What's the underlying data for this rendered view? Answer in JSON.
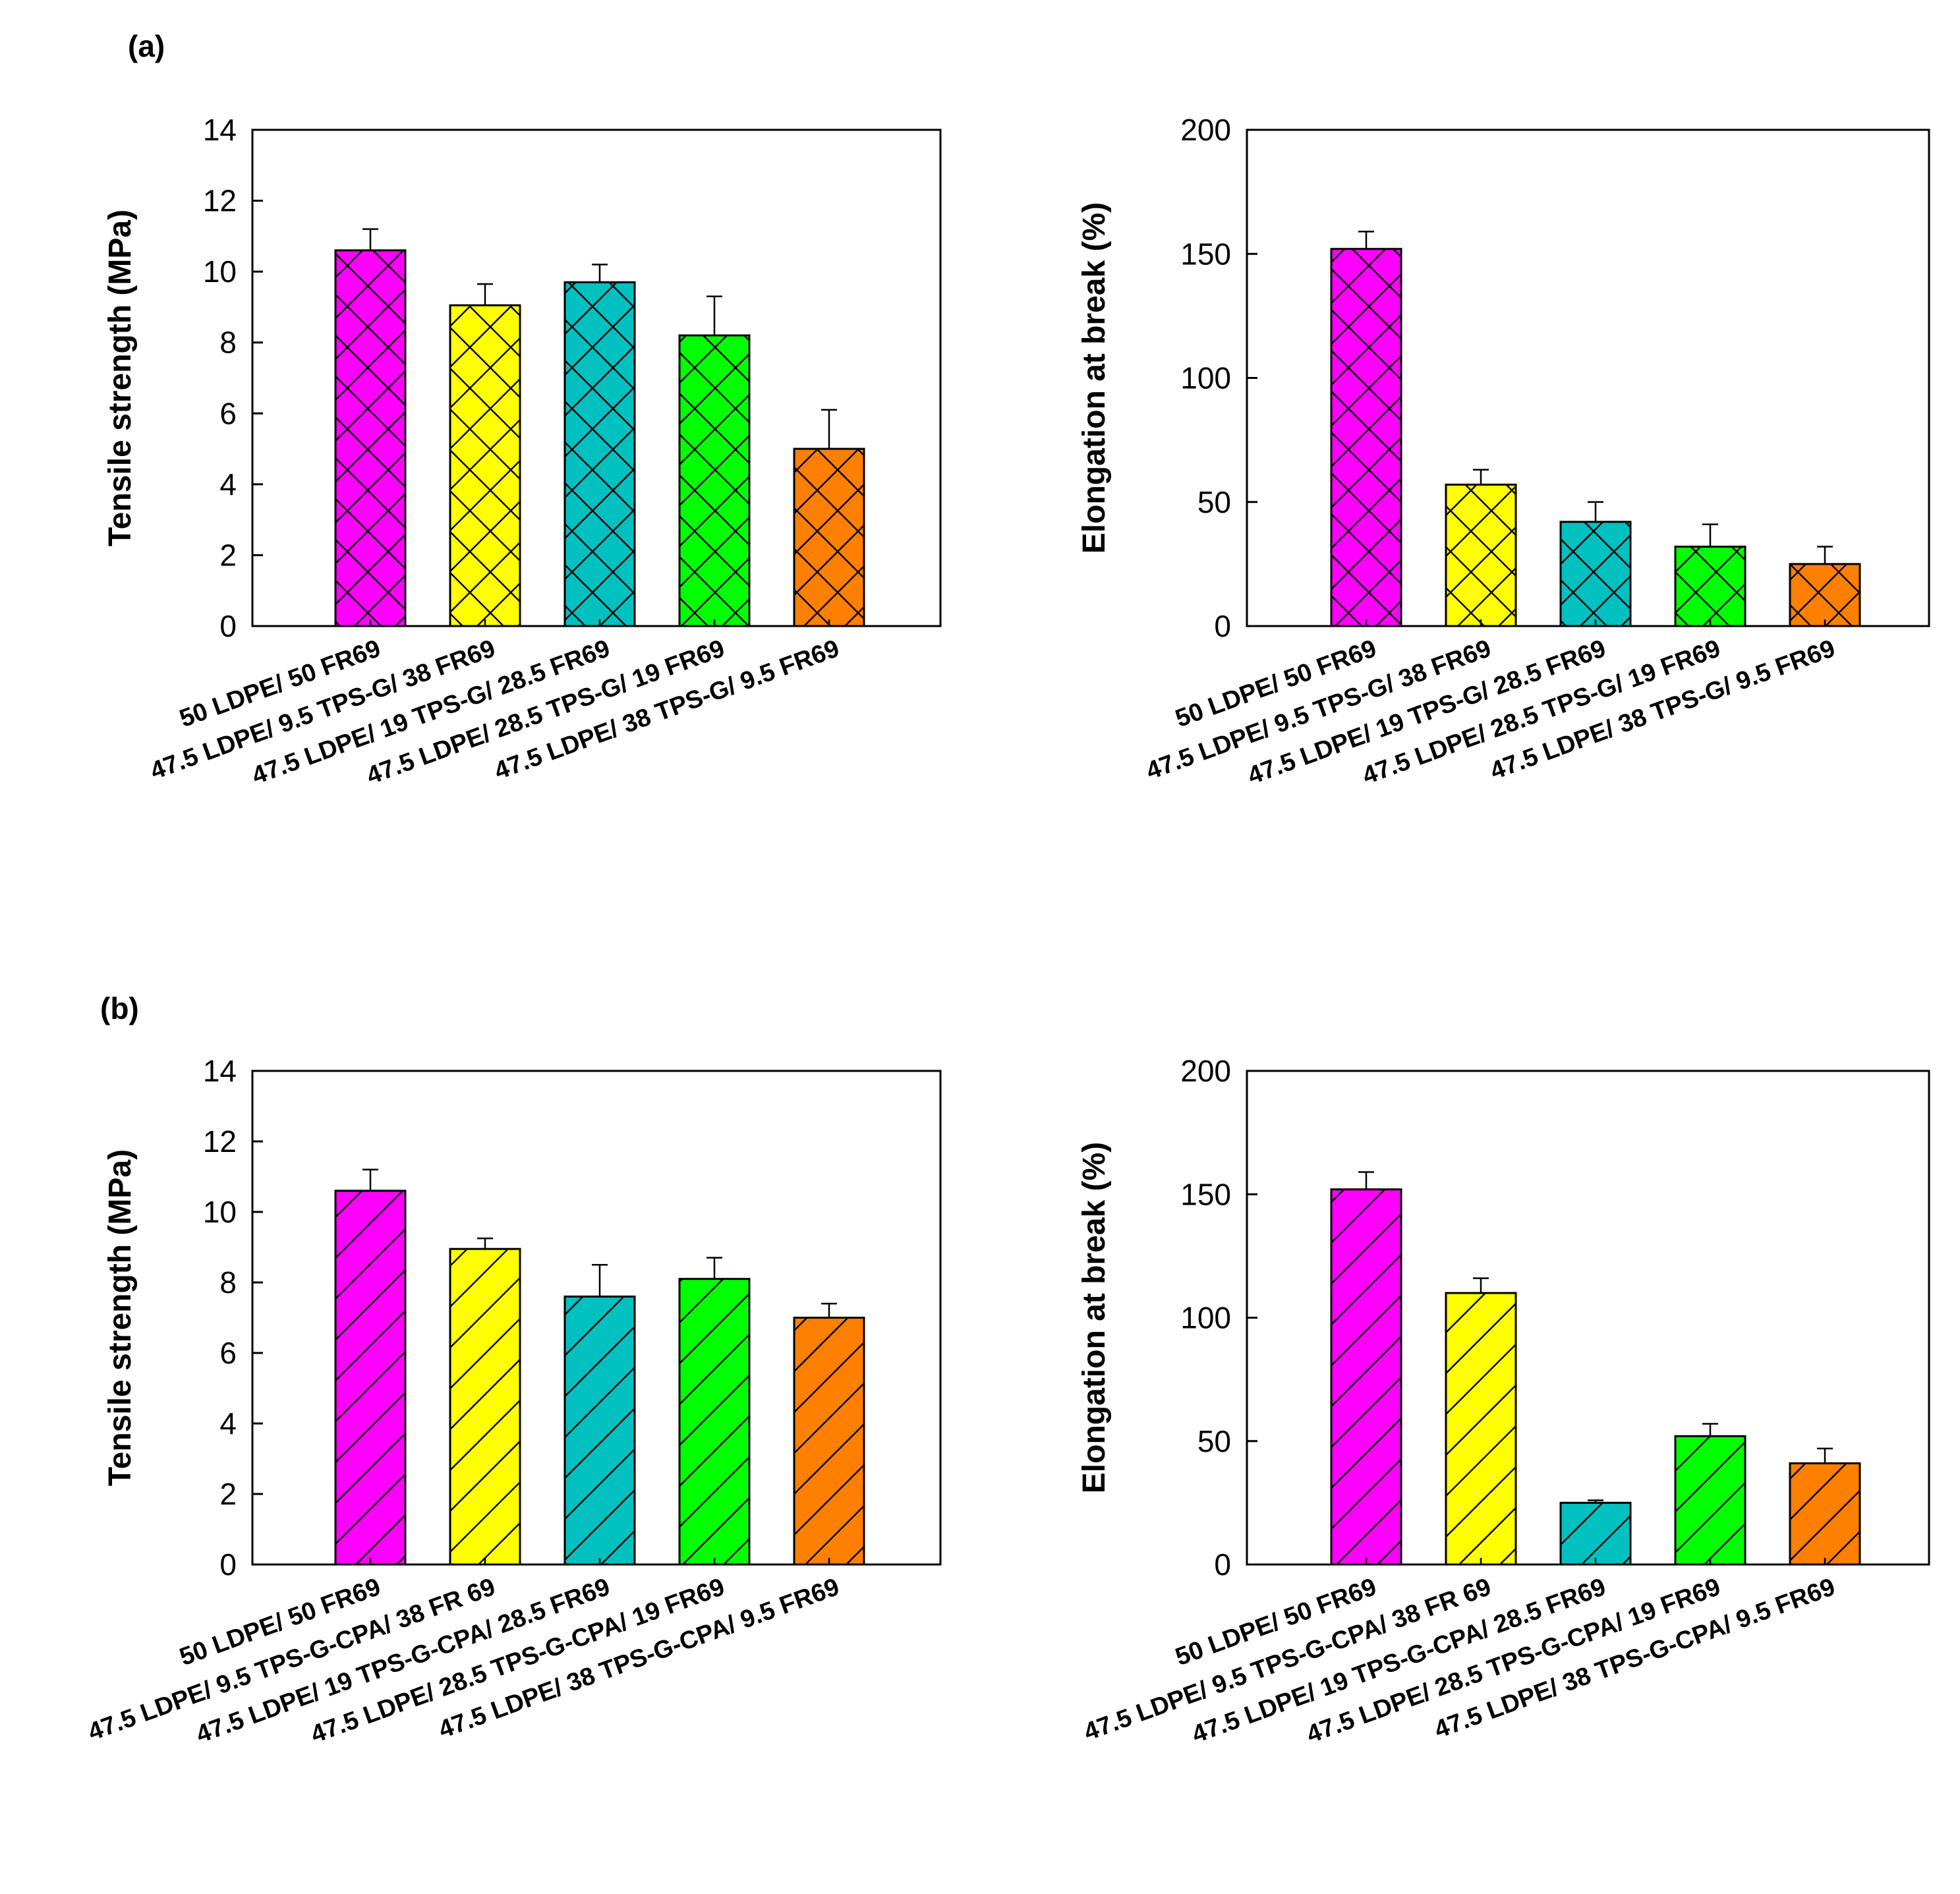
{
  "figure": {
    "panel_labels": [
      "(a)",
      "(b)"
    ]
  },
  "colors": {
    "magenta": "#ff00ff",
    "yellow": "#ffff00",
    "teal": "#00c0c0",
    "green": "#00ff00",
    "orange": "#ff7f00",
    "axis": "#000000"
  },
  "chart_data": [
    {
      "id": "a-tensile",
      "panel": "(a)",
      "type": "bar",
      "pattern": "crosshatch",
      "ylabel": "Tensile strength (MPa)",
      "xlabel": "",
      "ylim": [
        0,
        14
      ],
      "yticks": [
        "0",
        "2",
        "4",
        "6",
        "8",
        "10",
        "12",
        "14"
      ],
      "categories": [
        "50 LDPE/ 50 FR69",
        "47.5 LDPE/ 9.5 TPS-G/ 38 FR69",
        "47.5 LDPE/ 19 TPS-G/ 28.5 FR69",
        "47.5 LDPE/ 28.5 TPS-G/ 19 FR69",
        "47.5 LDPE/ 38 TPS-G/ 9.5 FR69"
      ],
      "values": [
        10.6,
        9.05,
        9.7,
        8.2,
        5.0
      ],
      "errors": [
        0.6,
        0.6,
        0.5,
        1.1,
        1.1
      ],
      "bar_colors": [
        "#ff00ff",
        "#ffff00",
        "#00c0c0",
        "#00ff00",
        "#ff7f00"
      ]
    },
    {
      "id": "a-elongation",
      "panel": "(a)",
      "type": "bar",
      "pattern": "crosshatch",
      "ylabel": "Elongation at break (%)",
      "xlabel": "",
      "ylim": [
        0,
        200
      ],
      "yticks": [
        "0",
        "50",
        "100",
        "150",
        "200"
      ],
      "categories": [
        "50 LDPE/ 50 FR69",
        "47.5 LDPE/ 9.5 TPS-G/ 38 FR69",
        "47.5 LDPE/ 19 TPS-G/ 28.5 FR69",
        "47.5 LDPE/ 28.5 TPS-G/ 19 FR69",
        "47.5 LDPE/ 38 TPS-G/ 9.5 FR69"
      ],
      "values": [
        152,
        57,
        42,
        32,
        25
      ],
      "errors": [
        7,
        6,
        8,
        9,
        7
      ],
      "bar_colors": [
        "#ff00ff",
        "#ffff00",
        "#00c0c0",
        "#00ff00",
        "#ff7f00"
      ]
    },
    {
      "id": "b-tensile",
      "panel": "(b)",
      "type": "bar",
      "pattern": "diagonal",
      "ylabel": "Tensile strength (MPa)",
      "xlabel": "",
      "ylim": [
        0,
        14
      ],
      "yticks": [
        "0",
        "2",
        "4",
        "6",
        "8",
        "10",
        "12",
        "14"
      ],
      "categories": [
        "50 LDPE/ 50 FR69",
        "47.5 LDPE/ 9.5 TPS-G-CPA/ 38 FR 69",
        "47.5 LDPE/ 19 TPS-G-CPA/ 28.5 FR69",
        "47.5 LDPE/ 28.5 TPS-G-CPA/ 19 FR69",
        "47.5 LDPE/ 38 TPS-G-CPA/ 9.5 FR69"
      ],
      "values": [
        10.6,
        8.95,
        7.6,
        8.1,
        7.0
      ],
      "errors": [
        0.6,
        0.3,
        0.9,
        0.6,
        0.4
      ],
      "bar_colors": [
        "#ff00ff",
        "#ffff00",
        "#00c0c0",
        "#00ff00",
        "#ff7f00"
      ]
    },
    {
      "id": "b-elongation",
      "panel": "(b)",
      "type": "bar",
      "pattern": "diagonal",
      "ylabel": "Elongation at break (%)",
      "xlabel": "",
      "ylim": [
        0,
        200
      ],
      "yticks": [
        "0",
        "50",
        "100",
        "150",
        "200"
      ],
      "categories": [
        "50 LDPE/ 50 FR69",
        "47.5 LDPE/ 9.5 TPS-G-CPA/ 38 FR 69",
        "47.5 LDPE/ 19 TPS-G-CPA/ 28.5 FR69",
        "47.5 LDPE/ 28.5 TPS-G-CPA/ 19 FR69",
        "47.5 LDPE/ 38 TPS-G-CPA/ 9.5 FR69"
      ],
      "values": [
        152,
        110,
        25,
        52,
        41
      ],
      "errors": [
        7,
        6,
        1,
        5,
        6
      ],
      "bar_colors": [
        "#ff00ff",
        "#ffff00",
        "#00c0c0",
        "#00ff00",
        "#ff7f00"
      ]
    }
  ]
}
